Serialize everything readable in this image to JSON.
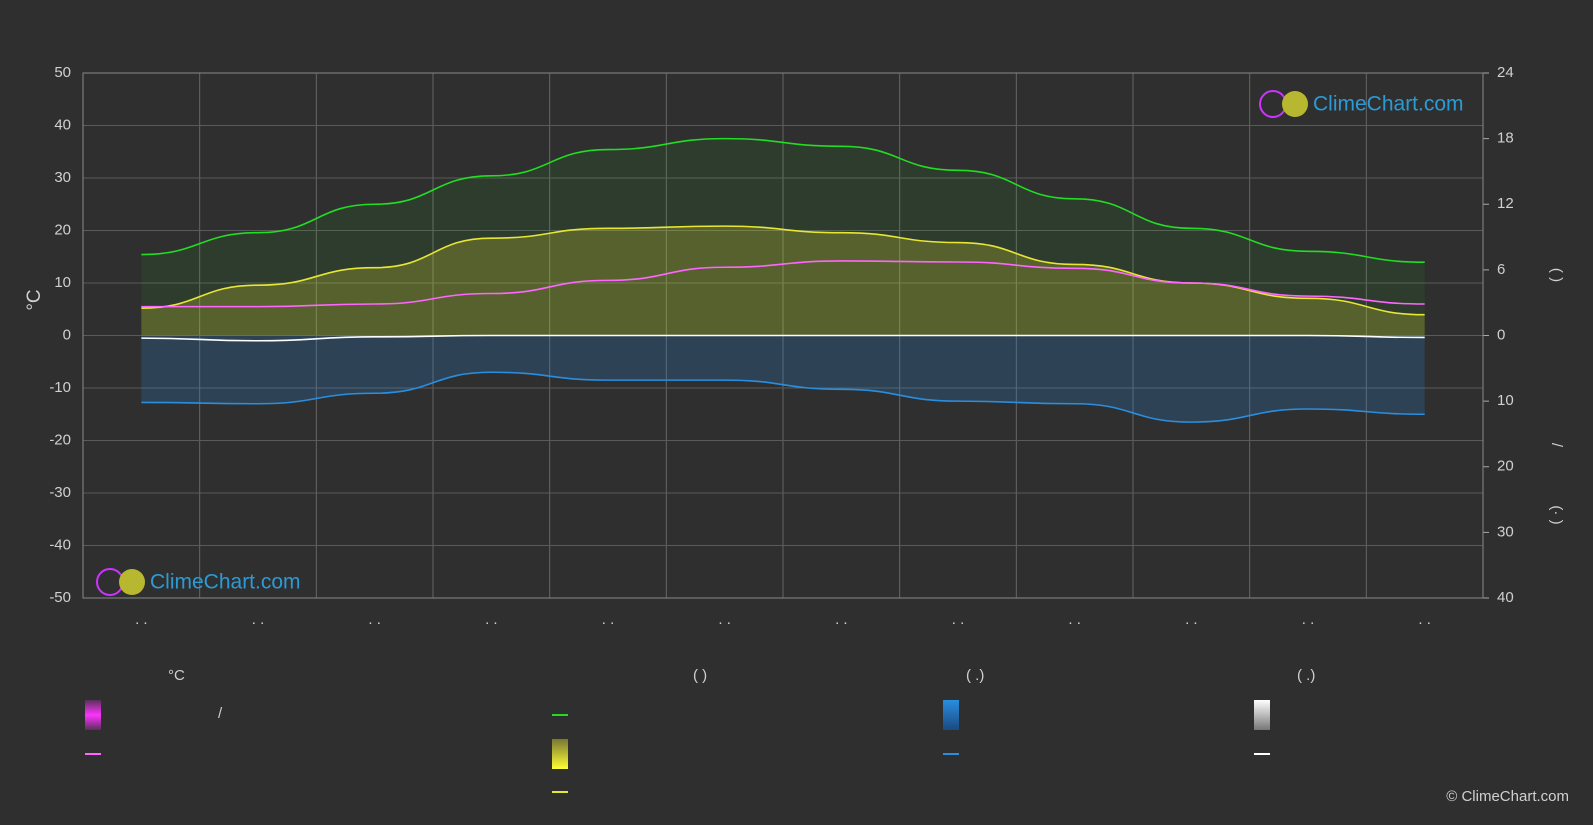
{
  "chart_data": {
    "type": "line",
    "y_label": "°C",
    "y2_label": "(        )",
    "y3_label": "(·   )",
    "y_divider": "/",
    "categories": [
      ". .",
      ". .",
      ". .",
      ". .",
      ". .",
      ". .",
      ". .",
      ". .",
      ". .",
      ". .",
      ". .",
      ". ."
    ],
    "ylim": [
      -50,
      50
    ],
    "yticks": [
      -50,
      -40,
      -30,
      -20,
      -10,
      0,
      10,
      20,
      30,
      40,
      50
    ],
    "y2lim": [
      0,
      24
    ],
    "y2ticks": [
      0,
      6,
      12,
      18,
      24
    ],
    "y3lim": [
      0,
      40
    ],
    "y3ticks": [
      10,
      20,
      30,
      40
    ],
    "grid": true,
    "series": [
      {
        "color": "#22dd22",
        "axis": "y2",
        "values": [
          7.4,
          9.4,
          12.0,
          14.6,
          17.0,
          18.0,
          17.3,
          15.1,
          12.5,
          9.8,
          7.7,
          6.7
        ]
      },
      {
        "color": "#e6e633",
        "axis": "y2",
        "values": [
          2.5,
          4.6,
          6.2,
          8.9,
          9.8,
          10.0,
          9.4,
          8.5,
          6.5,
          4.8,
          3.4,
          1.9
        ]
      },
      {
        "color": "#ff66ff",
        "axis": "y",
        "values": [
          5.5,
          5.5,
          6.0,
          8.0,
          10.5,
          13.0,
          14.2,
          14.0,
          12.8,
          10.0,
          7.5,
          6.0
        ]
      },
      {
        "color": "#2a8ee0",
        "axis": "y3",
        "values": [
          10.2,
          10.4,
          8.8,
          5.6,
          6.8,
          6.8,
          8.2,
          10.0,
          10.4,
          13.2,
          11.2,
          12.0
        ]
      },
      {
        "color": "#ffffff",
        "axis": "y3",
        "values": [
          0.4,
          0.8,
          0.2,
          0,
          0,
          0,
          0,
          0,
          0,
          0,
          0,
          0.3
        ]
      }
    ],
    "legend": {
      "headers": [
        "°C",
        "(          )",
        "(   .)",
        "(   .)"
      ],
      "divider": "/"
    },
    "logo": "ClimeChart.com",
    "copyright": "© ClimeChart.com"
  }
}
